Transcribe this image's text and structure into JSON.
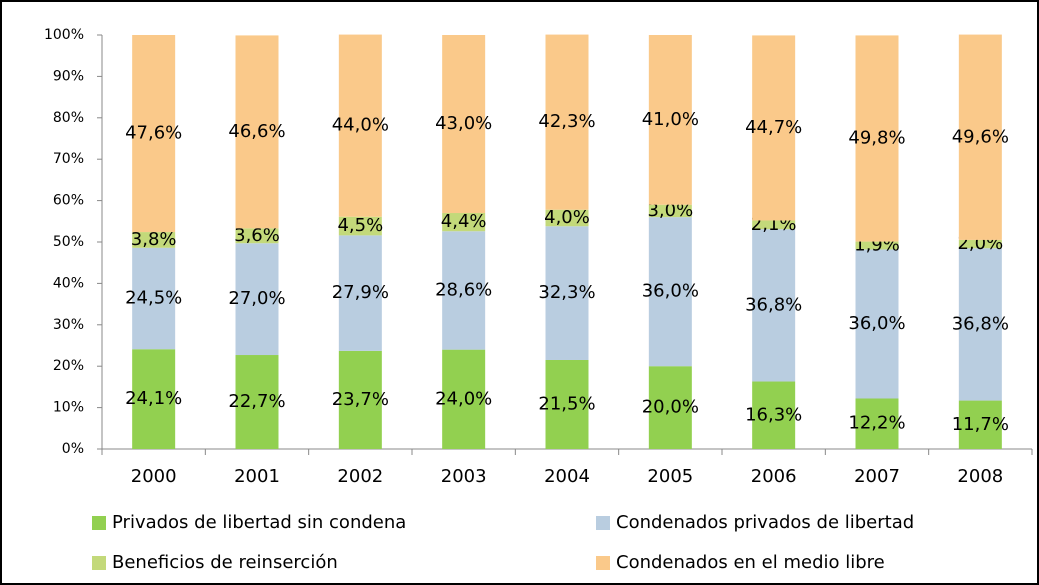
{
  "chart_data": {
    "type": "stacked_bar",
    "categories": [
      "2000",
      "2001",
      "2002",
      "2003",
      "2004",
      "2005",
      "2006",
      "2007",
      "2008"
    ],
    "series": [
      {
        "name": "Privados de libertad sin condena",
        "color": "#92d050",
        "values": [
          24.1,
          22.7,
          23.7,
          24.0,
          21.5,
          20.0,
          16.3,
          12.2,
          11.7
        ],
        "value_labels": [
          "24,1%",
          "22,7%",
          "23,7%",
          "24,0%",
          "21,5%",
          "20,0%",
          "16,3%",
          "12,2%",
          "11,7%"
        ]
      },
      {
        "name": "Condenados privados de libertad",
        "color": "#b9cde0",
        "values": [
          24.5,
          27.0,
          27.9,
          28.6,
          32.3,
          36.0,
          36.8,
          36.0,
          36.8
        ],
        "value_labels": [
          "24,5%",
          "27,0%",
          "27,9%",
          "28,6%",
          "32,3%",
          "36,0%",
          "36,8%",
          "36,0%",
          "36,8%"
        ]
      },
      {
        "name": "Beneficios de reinserción",
        "color": "#c3d97a",
        "values": [
          3.8,
          3.6,
          4.5,
          4.4,
          4.0,
          3.0,
          2.1,
          1.9,
          2.0
        ],
        "value_labels": [
          "3,8%",
          "3,6%",
          "4,5%",
          "4,4%",
          "4,0%",
          "3,0%",
          "2,1%",
          "1,9%",
          "2,0%"
        ]
      },
      {
        "name": "Condenados en el medio libre",
        "color": "#fac98a",
        "values": [
          47.6,
          46.6,
          44.0,
          43.0,
          42.3,
          41.0,
          44.7,
          49.8,
          49.6
        ],
        "value_labels": [
          "47,6%",
          "46,6%",
          "44,0%",
          "43,0%",
          "42,3%",
          "41,0%",
          "44,7%",
          "49,8%",
          "49,6%"
        ]
      }
    ],
    "ylim": [
      0,
      100
    ],
    "yticks": [
      {
        "value": 0,
        "label": "0%"
      },
      {
        "value": 10,
        "label": "10%"
      },
      {
        "value": 20,
        "label": "20%"
      },
      {
        "value": 30,
        "label": "30%"
      },
      {
        "value": 40,
        "label": "40%"
      },
      {
        "value": 50,
        "label": "50%"
      },
      {
        "value": 60,
        "label": "60%"
      },
      {
        "value": 70,
        "label": "70%"
      },
      {
        "value": 80,
        "label": "80%"
      },
      {
        "value": 90,
        "label": "90%"
      },
      {
        "value": 100,
        "label": "100%"
      }
    ],
    "grid": false,
    "legend": "bottom"
  }
}
